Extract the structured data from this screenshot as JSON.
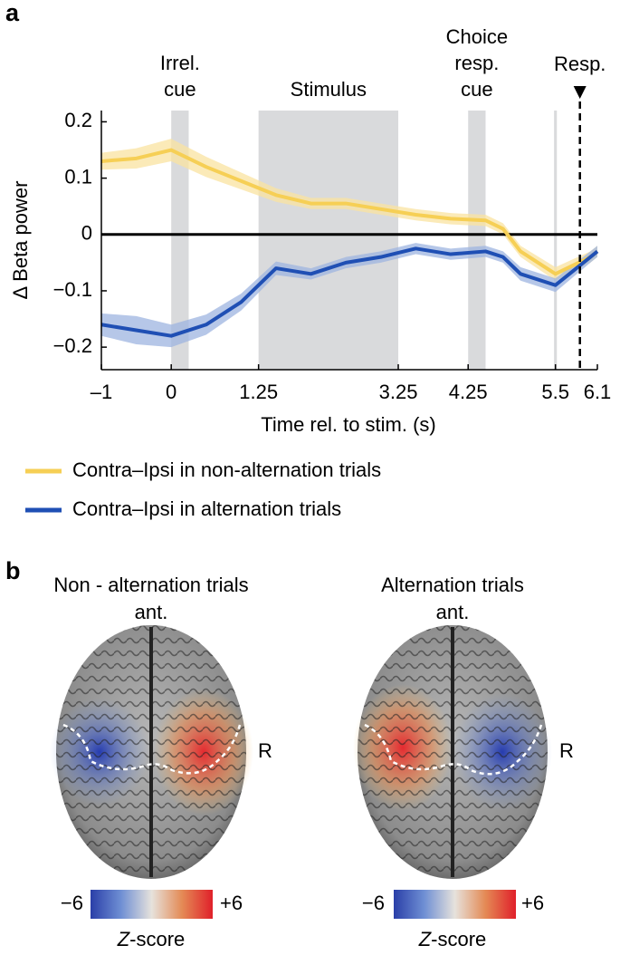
{
  "chart_data": {
    "type": "line",
    "y_label": "Δ Beta power",
    "x_label": "Time rel. to stim. (s)",
    "x": [
      -1,
      -0.5,
      0,
      0.5,
      1,
      1.5,
      2,
      2.5,
      3,
      3.5,
      4,
      4.5,
      4.75,
      5,
      5.5,
      6,
      6.1
    ],
    "series": [
      {
        "name": "Contra–Ipsi in non-alternation trials",
        "color": "#f6cf55",
        "band_color": "#f9e3a0",
        "values": [
          0.13,
          0.135,
          0.15,
          0.12,
          0.095,
          0.07,
          0.055,
          0.055,
          0.045,
          0.035,
          0.028,
          0.025,
          0.01,
          -0.03,
          -0.07,
          -0.04,
          -0.03
        ],
        "errors": [
          0.015,
          0.018,
          0.02,
          0.018,
          0.015,
          0.012,
          0.01,
          0.01,
          0.01,
          0.01,
          0.01,
          0.01,
          0.01,
          0.01,
          0.012,
          0.01,
          0.01
        ]
      },
      {
        "name": "Contra–Ipsi in alternation trials",
        "color": "#1f4fb4",
        "band_color": "#9eb4e0",
        "values": [
          -0.16,
          -0.17,
          -0.18,
          -0.16,
          -0.12,
          -0.06,
          -0.07,
          -0.05,
          -0.04,
          -0.025,
          -0.035,
          -0.03,
          -0.04,
          -0.07,
          -0.09,
          -0.04,
          -0.03
        ],
        "errors": [
          0.02,
          0.025,
          0.02,
          0.018,
          0.015,
          0.012,
          0.01,
          0.01,
          0.01,
          0.01,
          0.01,
          0.01,
          0.01,
          0.012,
          0.012,
          0.01,
          0.01
        ]
      }
    ],
    "xlim": [
      -1,
      6.1
    ],
    "ylim": [
      -0.24,
      0.22
    ],
    "xticks": [
      {
        "value": -1,
        "label": "–1"
      },
      0,
      1.25,
      3.25,
      4.25,
      5.5,
      6.1
    ],
    "yticks": [
      {
        "value": -0.2,
        "label": "−0.2"
      },
      {
        "value": -0.1,
        "label": "−0.1"
      },
      0,
      0.1,
      0.2
    ],
    "zero_line": true,
    "regions": [
      {
        "label": [
          "Irrel.",
          "cue"
        ],
        "x": [
          0,
          0.25
        ]
      },
      {
        "label": [
          "Stimulus"
        ],
        "x": [
          1.25,
          3.25
        ]
      },
      {
        "label": [
          "Choice",
          "resp.",
          "cue"
        ],
        "x": [
          4.25,
          4.5
        ]
      },
      {
        "x": [
          5.48,
          5.52
        ]
      }
    ],
    "region_color": "#d9dadc",
    "response": {
      "label": "Resp.",
      "x": 5.85
    }
  },
  "panel_a_label": "a",
  "panel_b": {
    "label": "b",
    "maps": [
      {
        "title": "Non - alternation trials",
        "subtitle": "ant.",
        "side": "R"
      },
      {
        "title": "Alternation trials",
        "subtitle": "ant.",
        "side": "R"
      }
    ],
    "colorbar": {
      "min_label": "−6",
      "max_label": "+6",
      "label_italic": "Z",
      "label_rest": "-score"
    }
  }
}
